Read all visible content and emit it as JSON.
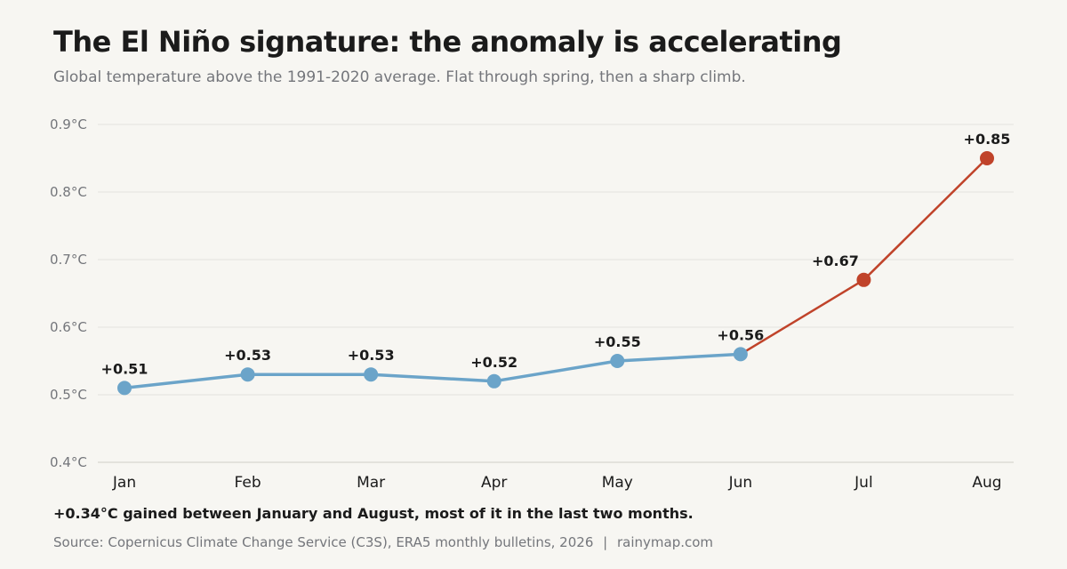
{
  "chart_data": {
    "type": "line",
    "title": "The El Niño signature: the anomaly is accelerating",
    "subtitle": "Global temperature above the 1991-2020 average. Flat through spring, then a sharp climb.",
    "categories": [
      "Jan",
      "Feb",
      "Mar",
      "Apr",
      "May",
      "Jun",
      "Jul",
      "Aug"
    ],
    "values": [
      0.51,
      0.53,
      0.53,
      0.52,
      0.55,
      0.56,
      0.67,
      0.85
    ],
    "data_labels": [
      "+0.51",
      "+0.53",
      "+0.53",
      "+0.52",
      "+0.55",
      "+0.56",
      "+0.67",
      "+0.85"
    ],
    "highlight_from_index": 5,
    "y_ticks": [
      0.4,
      0.5,
      0.6,
      0.7,
      0.8,
      0.9
    ],
    "y_tick_labels": [
      "0.4°C",
      "0.5°C",
      "0.6°C",
      "0.7°C",
      "0.8°C",
      "0.9°C"
    ],
    "ylim": [
      0.4,
      0.9
    ],
    "xlabel": "",
    "ylabel": "",
    "grid": "horizontal",
    "legend": "none",
    "colors": {
      "base": "#6ba4c9",
      "highlight": "#c0432a",
      "grid": "#e3e2dd",
      "axis": "#cfcdc7"
    }
  },
  "annotation": "+0.34°C gained between January and August, most of it in the last two months.",
  "footer": {
    "source": "Source: Copernicus Climate Change Service (C3S), ERA5 monthly bulletins, 2026",
    "separator": "|",
    "site": "rainymap.com"
  }
}
